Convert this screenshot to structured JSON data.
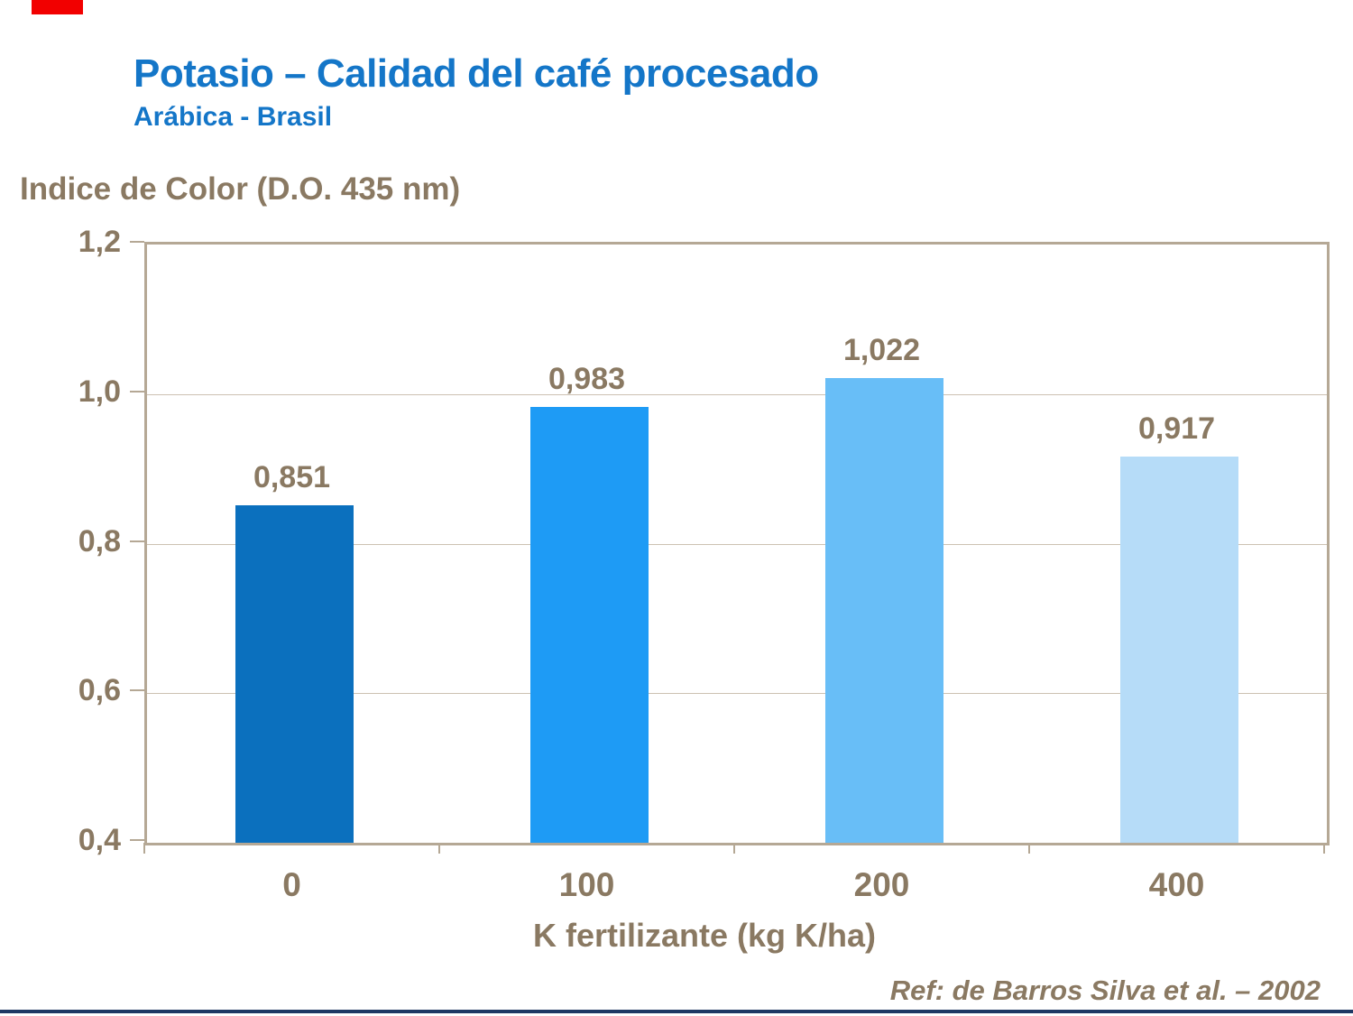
{
  "slide": {
    "title": "Potasio – Calidad del café procesado",
    "subtitle": "Arábica - Brasil",
    "reference": "Ref: de Barros Silva et al. – 2002"
  },
  "chart_data": {
    "type": "bar",
    "title": "Potasio – Calidad del café procesado",
    "subtitle": "Arábica - Brasil",
    "ylabel": "Indice de Color (D.O. 435 nm)",
    "xlabel": "K fertilizante (kg K/ha)",
    "categories": [
      "0",
      "100",
      "200",
      "400"
    ],
    "values": [
      0.851,
      0.983,
      1.022,
      0.917
    ],
    "value_labels": [
      "0,851",
      "0,983",
      "1,022",
      "0,917"
    ],
    "bar_colors": [
      "#0B70BE",
      "#1E9BF5",
      "#68BEF7",
      "#B6DCF8"
    ],
    "ylim": [
      0.4,
      1.2
    ],
    "yticks": [
      1.2,
      1.0,
      0.8,
      0.6,
      0.4
    ],
    "ytick_labels": [
      "1,2",
      "1,0",
      "0,8",
      "0,6",
      "0,4"
    ],
    "grid": "horizontal",
    "legend": "none",
    "reference": "Ref: de Barros Silva et al. – 2002"
  },
  "colors": {
    "title_blue": "#1476C8",
    "text_brown": "#8A7962",
    "frame_tan": "#B5A895",
    "gridline_tan": "#CCC1B2",
    "accent_red": "#F20000",
    "bottom_rule_navy": "#1F3864"
  }
}
